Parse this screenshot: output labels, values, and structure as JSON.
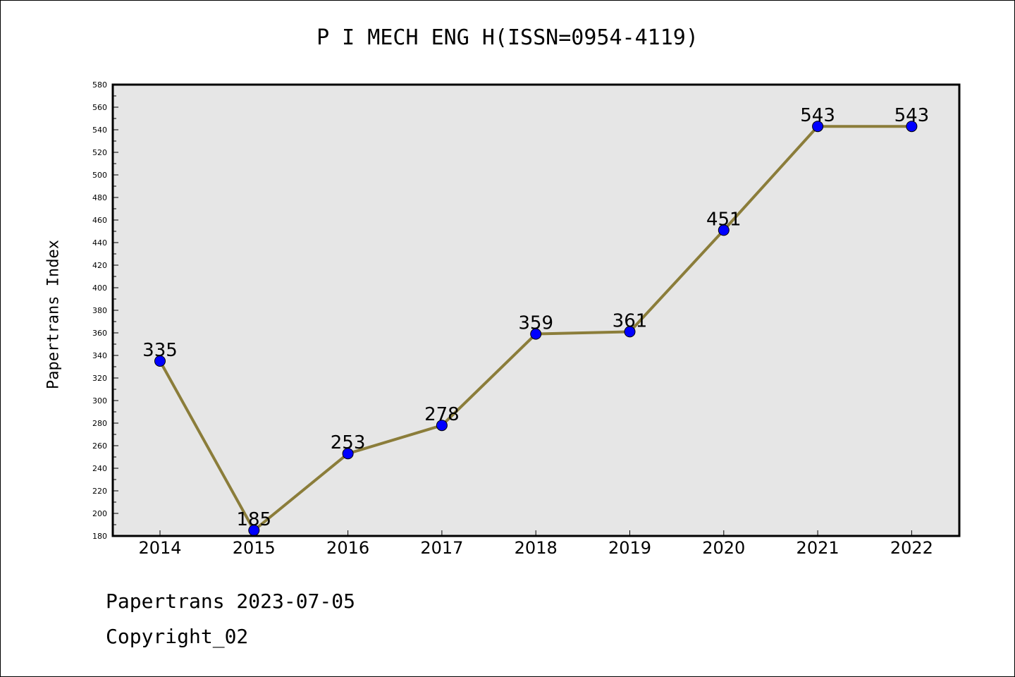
{
  "chart_data": {
    "type": "line",
    "title": "P I MECH ENG H(ISSN=0954-4119)",
    "xlabel": "",
    "ylabel": "Papertrans Index",
    "categories": [
      "2014",
      "2015",
      "2016",
      "2017",
      "2018",
      "2019",
      "2020",
      "2021",
      "2022"
    ],
    "series": [
      {
        "values": [
          335,
          185,
          253,
          278,
          359,
          361,
          451,
          543,
          543
        ]
      }
    ],
    "ylim": [
      180,
      580
    ],
    "ytick_step": 20,
    "grid": false,
    "line_color": "#8b7d3a",
    "marker_color": "#0000ff",
    "plot_background": "#e6e6e6"
  },
  "footer": {
    "line1": "Papertrans 2023-07-05",
    "line2": "Copyright_02"
  }
}
